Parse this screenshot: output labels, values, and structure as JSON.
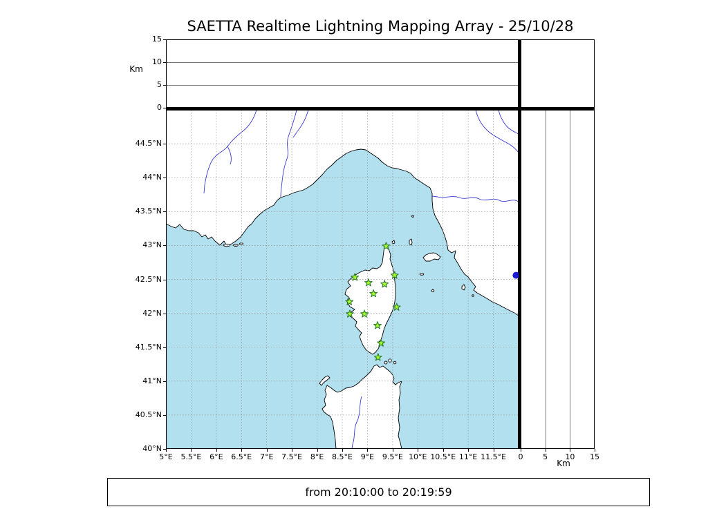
{
  "title": "SAETTA Realtime Lightning Mapping Array - 25/10/28",
  "footer": {
    "text": "from 20:10:00 to 20:19:59"
  },
  "colors": {
    "sea": "#b2e0ef",
    "land": "#ffffff",
    "coast": "#000000",
    "river": "#3a3ad0",
    "grid": "#949494",
    "panel_line": "#787878",
    "station_fill": "#a9fb2e",
    "station_stroke": "#2b7d2b",
    "event_dot": "#1a1ad2"
  },
  "altitude_axis": {
    "unit_label": "Km",
    "ticks": [
      0,
      5,
      10,
      15
    ],
    "range_km": [
      0,
      15
    ]
  },
  "map_axes": {
    "lon_range_deg": [
      5,
      12
    ],
    "lat_range_deg": [
      40,
      45
    ],
    "lon_ticks": [
      {
        "value": 5,
        "label": "5°E"
      },
      {
        "value": 5.5,
        "label": "5.5°E"
      },
      {
        "value": 6,
        "label": "6°E"
      },
      {
        "value": 6.5,
        "label": "6.5°E"
      },
      {
        "value": 7,
        "label": "7°E"
      },
      {
        "value": 7.5,
        "label": "7.5°E"
      },
      {
        "value": 8,
        "label": "8°E"
      },
      {
        "value": 8.5,
        "label": "8.5°E"
      },
      {
        "value": 9,
        "label": "9°E"
      },
      {
        "value": 9.5,
        "label": "9.5°E"
      },
      {
        "value": 10,
        "label": "10°E"
      },
      {
        "value": 10.5,
        "label": "10.5°E"
      },
      {
        "value": 11,
        "label": "11°E"
      },
      {
        "value": 11.5,
        "label": "11.5°E"
      }
    ],
    "lat_ticks": [
      {
        "value": 44.5,
        "label": "44.5°N"
      },
      {
        "value": 44,
        "label": "44°N"
      },
      {
        "value": 43.5,
        "label": "43.5°N"
      },
      {
        "value": 43,
        "label": "43°N"
      },
      {
        "value": 42.5,
        "label": "42.5°N"
      },
      {
        "value": 42,
        "label": "42°N"
      },
      {
        "value": 41.5,
        "label": "41.5°N"
      },
      {
        "value": 41,
        "label": "41°N"
      },
      {
        "value": 40.5,
        "label": "40.5°N"
      },
      {
        "value": 40,
        "label": "40°N"
      }
    ]
  },
  "chart_data": {
    "type": "scatter",
    "title": "SAETTA Realtime Lightning Mapping Array - 25/10/28",
    "time_window": "from 20:10:00 to 20:19:59",
    "lon_range": [
      5,
      12
    ],
    "lat_range": [
      40,
      45
    ],
    "altitude_range_km": [
      0,
      15
    ],
    "grid": true,
    "stations_lon_lat": [
      [
        9.37,
        42.99
      ],
      [
        8.75,
        42.53
      ],
      [
        9.02,
        42.45
      ],
      [
        9.34,
        42.43
      ],
      [
        9.54,
        42.56
      ],
      [
        9.12,
        42.29
      ],
      [
        8.64,
        42.17
      ],
      [
        9.58,
        42.09
      ],
      [
        8.65,
        41.99
      ],
      [
        8.94,
        41.99
      ],
      [
        9.2,
        41.82
      ],
      [
        9.27,
        41.56
      ],
      [
        9.21,
        41.35
      ]
    ],
    "event_points_lon_lat": [
      [
        11.95,
        42.56
      ]
    ]
  }
}
